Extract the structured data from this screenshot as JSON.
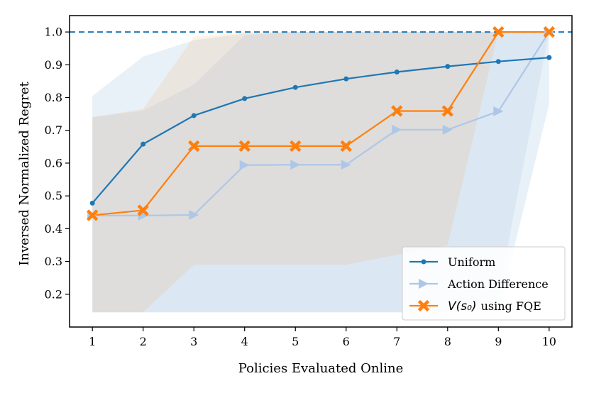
{
  "chart_data": {
    "type": "line",
    "xlabel": "Policies Evaluated Online",
    "ylabel": "Inversed Normalized Regret",
    "xlim": [
      0.55,
      10.45
    ],
    "ylim": [
      0.1,
      1.05
    ],
    "x": [
      1,
      2,
      3,
      4,
      5,
      6,
      7,
      8,
      9,
      10
    ],
    "xticks": [
      "1",
      "2",
      "3",
      "4",
      "5",
      "6",
      "7",
      "8",
      "9",
      "10"
    ],
    "yticks": [
      "0.2",
      "0.3",
      "0.4",
      "0.5",
      "0.6",
      "0.7",
      "0.8",
      "0.9",
      "1.0"
    ],
    "reference_line": {
      "y": 1.0,
      "style": "dashed",
      "color": "#1f77b4"
    },
    "legend_position": "lower-right",
    "series": [
      {
        "name": "Uniform",
        "color": "#1f77b4",
        "marker": "circle",
        "values": [
          0.478,
          0.658,
          0.745,
          0.797,
          0.831,
          0.857,
          0.878,
          0.895,
          0.91,
          0.922
        ],
        "band_lower": [
          0.145,
          0.145,
          0.145,
          0.145,
          0.145,
          0.145,
          0.145,
          0.145,
          0.145,
          0.78
        ],
        "band_upper": [
          0.805,
          0.925,
          0.975,
          0.995,
          1.0,
          1.0,
          1.0,
          1.0,
          1.0,
          1.0
        ]
      },
      {
        "name": "Action Difference",
        "color": "#aec7e8",
        "marker": "triangle-right",
        "values": [
          0.44,
          0.44,
          0.442,
          0.594,
          0.595,
          0.595,
          0.702,
          0.702,
          0.758,
          1.0
        ],
        "band_lower": [
          0.145,
          0.145,
          0.145,
          0.145,
          0.145,
          0.145,
          0.145,
          0.145,
          0.2,
          1.0
        ],
        "band_upper": [
          0.74,
          0.76,
          0.84,
          0.99,
          1.0,
          1.0,
          1.0,
          1.0,
          1.0,
          1.0
        ]
      },
      {
        "name": "using FQE",
        "name_math": "V(s₀)",
        "color": "#ff7f0e",
        "marker": "x",
        "values": [
          0.441,
          0.456,
          0.652,
          0.652,
          0.652,
          0.652,
          0.759,
          0.759,
          1.0,
          1.0
        ],
        "band_lower": [
          0.145,
          0.145,
          0.29,
          0.29,
          0.29,
          0.29,
          0.32,
          0.35,
          1.0,
          1.0
        ],
        "band_upper": [
          0.74,
          0.765,
          0.985,
          1.0,
          1.0,
          1.0,
          1.0,
          1.0,
          1.0,
          1.0
        ]
      }
    ]
  }
}
